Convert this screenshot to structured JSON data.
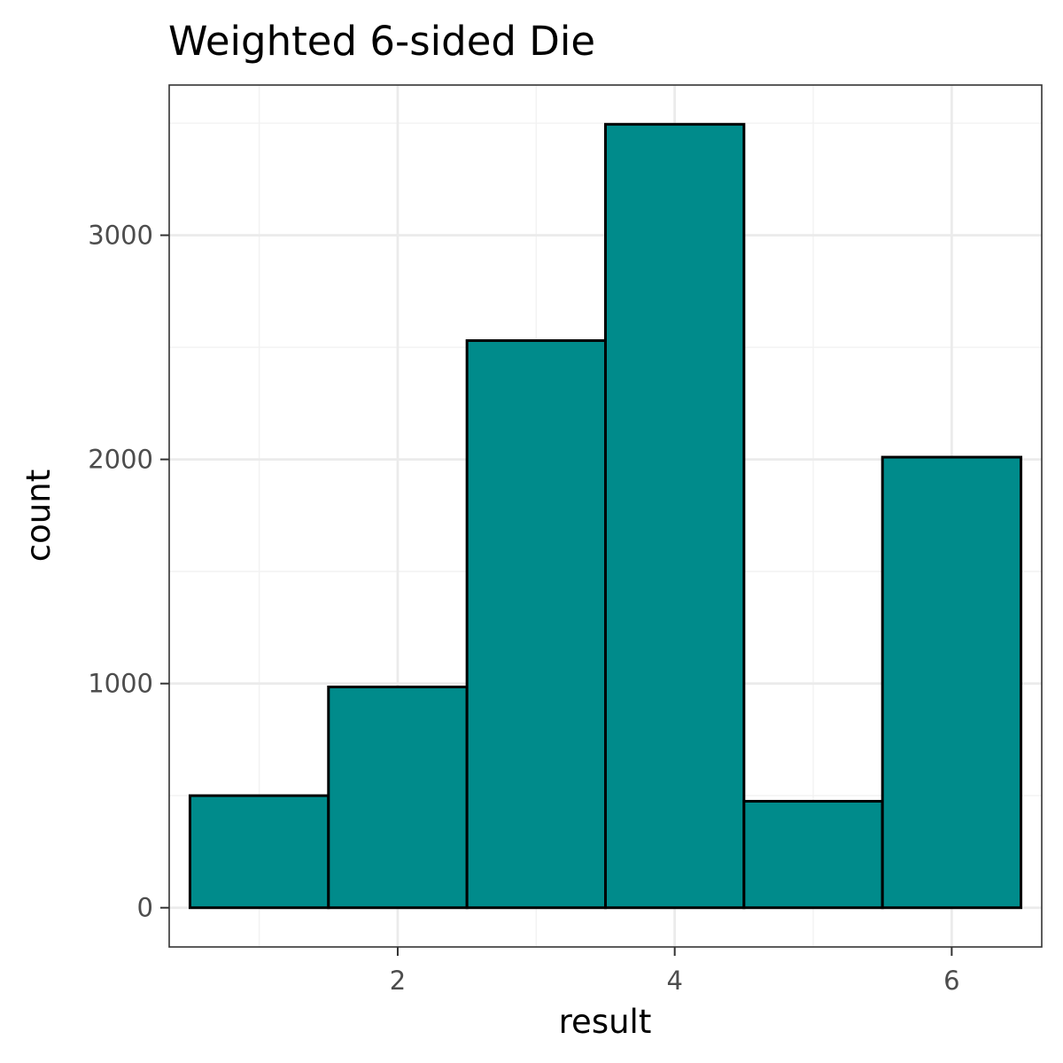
{
  "chart_data": {
    "type": "bar",
    "title": "Weighted 6-sided Die",
    "xlabel": "result",
    "ylabel": "count",
    "categories": [
      1,
      2,
      3,
      4,
      5,
      6
    ],
    "values": [
      500,
      985,
      2530,
      3495,
      475,
      2010
    ],
    "x_ticks": [
      2,
      4,
      6
    ],
    "x_tick_labels": [
      "2",
      "4",
      "6"
    ],
    "y_ticks": [
      0,
      1000,
      2000,
      3000
    ],
    "y_tick_labels": [
      "0",
      "1000",
      "2000",
      "3000"
    ],
    "xlim": [
      0.35,
      6.65
    ],
    "ylim": [
      -175,
      3670
    ],
    "grid": true,
    "legend": "none",
    "colors": {
      "bar_fill": "#008B8B",
      "bar_stroke": "#000000",
      "panel_border": "#333333",
      "grid_major": "#EBEBEB",
      "grid_minor": "#F2F2F2",
      "tick_text": "#4D4D4D"
    }
  }
}
